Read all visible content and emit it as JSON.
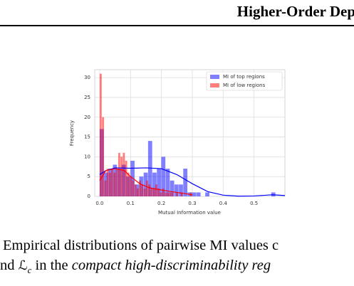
{
  "header": {
    "title": "Higher-Order Dep"
  },
  "chart_data": {
    "type": "histogram",
    "xlabel": "Mutual Information value",
    "ylabel": "Frequency",
    "xlim": [
      -0.016,
      0.6
    ],
    "ylim": [
      0,
      32
    ],
    "xticks": [
      {
        "value": 0,
        "label": "0.0"
      },
      0.1,
      0.2,
      0.3,
      0.4,
      0.5
    ],
    "yticks": [
      0,
      5,
      10,
      15,
      20,
      25,
      30
    ],
    "grid": true,
    "legend": "upper right",
    "series": [
      {
        "name": "MI of top regions",
        "color": "#0000ff",
        "bins": [
          0.0,
          0.01425,
          0.0285,
          0.04275,
          0.057,
          0.07125,
          0.0855,
          0.09975,
          0.114,
          0.12825,
          0.1425,
          0.15675,
          0.171,
          0.18525,
          0.1995,
          0.21375,
          0.228,
          0.24225,
          0.2565,
          0.27075,
          0.285,
          0.29925,
          0.3135,
          0.32775,
          0.342,
          0.35625,
          0.3705,
          0.38475,
          0.399,
          0.41325,
          0.4275,
          0.44175,
          0.456,
          0.47025,
          0.4845,
          0.49875,
          0.513,
          0.52725,
          0.5415,
          0.55575,
          0.57
        ],
        "values": [
          17,
          6,
          7,
          8,
          7,
          8,
          5,
          9,
          3,
          5,
          6,
          14,
          6,
          7,
          10,
          7,
          4,
          3,
          3,
          7,
          1,
          1,
          1,
          0,
          1,
          0,
          0,
          0,
          0,
          0,
          0,
          0,
          0,
          0,
          0,
          0,
          0,
          0,
          0,
          1
        ],
        "kde": {
          "x": [
            0.0,
            0.02,
            0.05,
            0.1,
            0.15,
            0.2,
            0.25,
            0.3,
            0.35,
            0.4,
            0.45,
            0.5,
            0.56,
            0.6
          ],
          "values": [
            5.5,
            6.5,
            7.2,
            7.1,
            7.2,
            7.0,
            5.5,
            3.2,
            1.2,
            0.3,
            0.05,
            0.1,
            0.4,
            0.2
          ]
        }
      },
      {
        "name": "MI of low regions",
        "color": "#ff0000",
        "bins": [
          0.0,
          0.0075,
          0.015,
          0.0225,
          0.03,
          0.0375,
          0.045,
          0.0525,
          0.06,
          0.0675,
          0.075,
          0.0825,
          0.09,
          0.0975,
          0.105,
          0.1125,
          0.12,
          0.1275,
          0.135,
          0.1425,
          0.15,
          0.1575,
          0.165,
          0.1725,
          0.18,
          0.1875,
          0.195,
          0.2025,
          0.21,
          0.2175,
          0.225,
          0.2325,
          0.24,
          0.2475,
          0.255,
          0.2625,
          0.27,
          0.2775,
          0.285,
          0.2925,
          0.3
        ],
        "values": [
          31,
          20,
          4,
          7,
          6,
          7,
          6,
          7,
          11,
          10,
          11,
          9,
          6,
          5,
          4,
          3,
          2,
          4,
          3,
          2,
          4,
          3,
          2,
          2,
          3,
          2,
          1,
          2,
          1,
          1,
          1,
          1,
          0,
          1,
          0,
          1,
          0,
          0,
          0,
          1
        ],
        "kde": {
          "x": [
            0.0,
            0.02,
            0.05,
            0.08,
            0.1,
            0.13,
            0.16,
            0.2,
            0.25,
            0.3
          ],
          "values": [
            4,
            6.5,
            7,
            6.5,
            5,
            3.2,
            2.2,
            1.6,
            1.0,
            0.4
          ]
        }
      }
    ]
  },
  "caption": {
    "line1": "Empirical distributions of pairwise MI values c",
    "line2": {
      "pre": "nd ",
      "math": "ℒ",
      "sub": "c",
      "mid": " in the ",
      "italic": "compact high-discriminability reg"
    }
  }
}
